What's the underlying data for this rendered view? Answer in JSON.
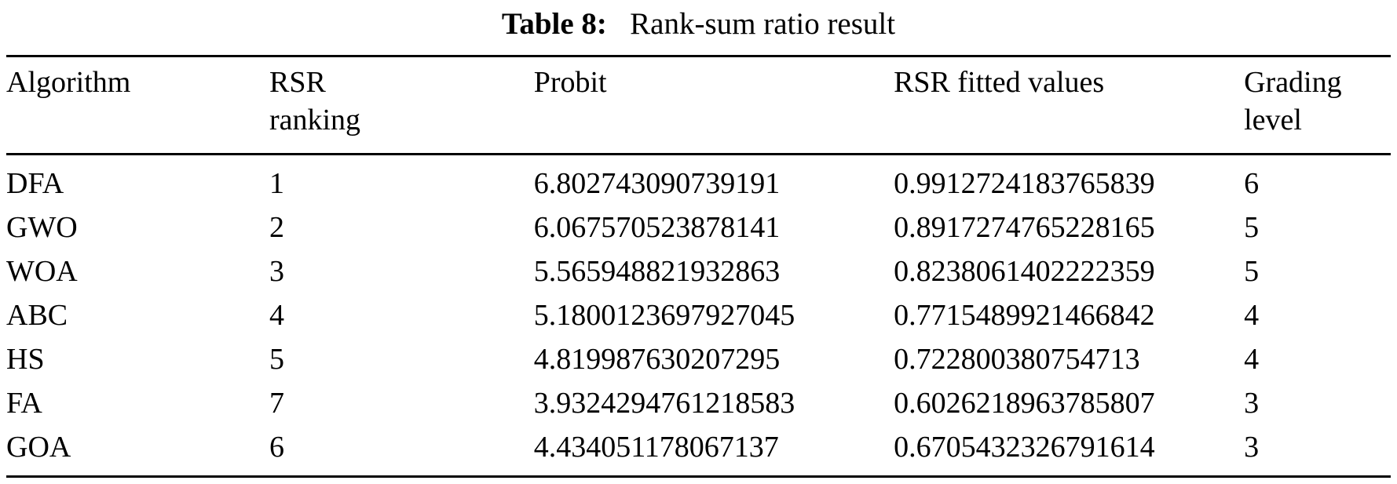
{
  "caption": {
    "label": "Table 8:",
    "text": "Rank-sum ratio result"
  },
  "colors": {
    "text": "#000000",
    "background": "#ffffff",
    "rule": "#000000"
  },
  "table": {
    "headers": {
      "algorithm": "Algorithm",
      "rsr_ranking": "RSR ranking",
      "probit": "Probit",
      "rsr_fitted": "RSR fitted values",
      "grading_level": "Grading level"
    },
    "rows": [
      {
        "algorithm": "DFA",
        "rsr_ranking": "1",
        "probit": "6.802743090739191",
        "rsr_fitted": "0.9912724183765839",
        "grading_level": "6"
      },
      {
        "algorithm": "GWO",
        "rsr_ranking": "2",
        "probit": "6.067570523878141",
        "rsr_fitted": "0.8917274765228165",
        "grading_level": "5"
      },
      {
        "algorithm": "WOA",
        "rsr_ranking": "3",
        "probit": "5.565948821932863",
        "rsr_fitted": "0.8238061402222359",
        "grading_level": "5"
      },
      {
        "algorithm": "ABC",
        "rsr_ranking": "4",
        "probit": "5.1800123697927045",
        "rsr_fitted": "0.7715489921466842",
        "grading_level": "4"
      },
      {
        "algorithm": "HS",
        "rsr_ranking": "5",
        "probit": "4.819987630207295",
        "rsr_fitted": "0.722800380754713",
        "grading_level": "4"
      },
      {
        "algorithm": "FA",
        "rsr_ranking": "7",
        "probit": "3.9324294761218583",
        "rsr_fitted": "0.6026218963785807",
        "grading_level": "3"
      },
      {
        "algorithm": "GOA",
        "rsr_ranking": "6",
        "probit": "4.434051178067137",
        "rsr_fitted": "0.6705432326791614",
        "grading_level": "3"
      }
    ]
  }
}
